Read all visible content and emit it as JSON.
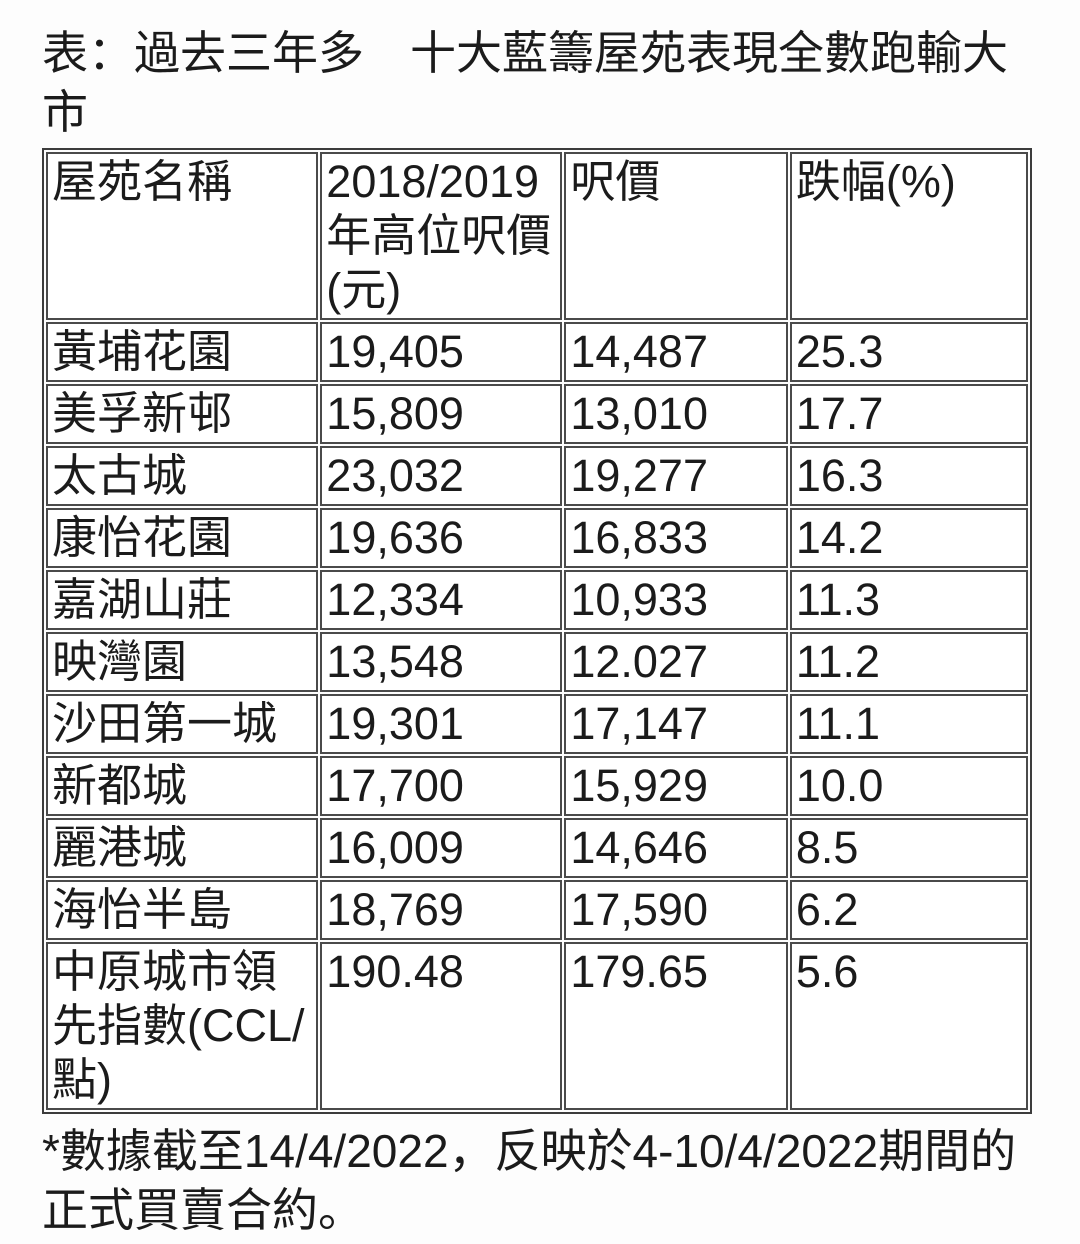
{
  "title": "表：過去三年多　十大藍籌屋苑表現全數跑輸大市",
  "table": {
    "columns": [
      "屋苑名稱",
      "2018/2019年高位呎價(元)",
      "呎價",
      "跌幅(%)"
    ],
    "rows": [
      [
        "黃埔花園",
        "19,405",
        "14,487",
        "25.3"
      ],
      [
        "美孚新邨",
        "15,809",
        "13,010",
        "17.7"
      ],
      [
        "太古城",
        "23,032",
        "19,277",
        "16.3"
      ],
      [
        "康怡花園",
        "19,636",
        "16,833",
        "14.2"
      ],
      [
        "嘉湖山莊",
        "12,334",
        "10,933",
        "11.3"
      ],
      [
        "映灣園",
        "13,548",
        "12.027",
        "11.2"
      ],
      [
        "沙田第一城",
        "19,301",
        "17,147",
        "11.1"
      ],
      [
        "新都城",
        "17,700",
        "15,929",
        "10.0"
      ],
      [
        "麗港城",
        "16,009",
        "14,646",
        "8.5"
      ],
      [
        "海怡半島",
        "18,769",
        "17,590",
        "6.2"
      ],
      [
        "中原城市領先指數(CCL/點)",
        "190.48",
        "179.65",
        "5.6"
      ]
    ]
  },
  "footnote": "*數據截至14/4/2022，反映於4-10/4/2022期間的正式買賣合約。",
  "colors": {
    "background": "#fdfdfd",
    "text": "#1b1b1b",
    "table_border": "#3c3c3c",
    "cell_border": "#4a4a4a"
  }
}
